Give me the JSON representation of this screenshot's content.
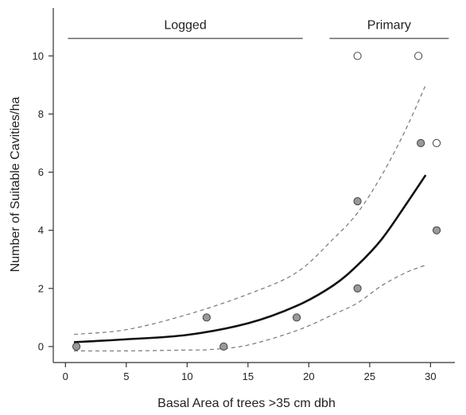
{
  "chart_data": {
    "type": "scatter",
    "title": "",
    "xlabel": "Basal Area of trees >35 cm dbh",
    "ylabel": "Number of Suitable Cavities/ha",
    "xlim": [
      -1,
      32
    ],
    "ylim": [
      -0.55,
      11.65
    ],
    "xticks": [
      0,
      5,
      10,
      15,
      20,
      25,
      30
    ],
    "yticks": [
      0,
      2,
      4,
      6,
      8,
      10
    ],
    "grid": false,
    "groups": [
      {
        "label": "Logged",
        "x_range": [
          0.2,
          19.5
        ],
        "y": 10.6
      },
      {
        "label": "Primary",
        "x_range": [
          21.7,
          31.5
        ],
        "y": 10.6
      }
    ],
    "series": [
      {
        "marker": "filled-circle",
        "color": "#999999",
        "points": [
          {
            "x": 0.9,
            "y": 0
          },
          {
            "x": 11.6,
            "y": 1
          },
          {
            "x": 13.0,
            "y": 0
          },
          {
            "x": 19.0,
            "y": 1
          },
          {
            "x": 24.0,
            "y": 5
          },
          {
            "x": 24.0,
            "y": 2
          },
          {
            "x": 29.2,
            "y": 7
          },
          {
            "x": 30.5,
            "y": 4
          }
        ]
      },
      {
        "marker": "open-circle",
        "color": "#ffffff",
        "points": [
          {
            "x": 24.0,
            "y": 10
          },
          {
            "x": 29.0,
            "y": 10
          },
          {
            "x": 30.5,
            "y": 7
          }
        ]
      }
    ],
    "fit": {
      "style": "solid",
      "x": [
        0.7,
        5,
        10,
        15,
        19,
        22,
        24,
        26,
        28,
        29.6
      ],
      "y": [
        0.15,
        0.25,
        0.4,
        0.8,
        1.4,
        2.1,
        2.8,
        3.7,
        4.9,
        5.9
      ]
    },
    "ci_upper": {
      "style": "dashed",
      "x": [
        0.7,
        5,
        10,
        15,
        19,
        22,
        24,
        26,
        28,
        29.6
      ],
      "y": [
        0.42,
        0.58,
        1.1,
        1.8,
        2.55,
        3.7,
        4.6,
        5.9,
        7.5,
        9.0
      ]
    },
    "ci_lower": {
      "style": "dashed",
      "x": [
        0.7,
        5,
        10,
        12,
        15,
        19,
        22,
        24,
        26,
        28,
        29.6
      ],
      "y": [
        -0.15,
        -0.15,
        -0.12,
        -0.1,
        0.05,
        0.55,
        1.1,
        1.5,
        2.1,
        2.55,
        2.8
      ]
    }
  }
}
